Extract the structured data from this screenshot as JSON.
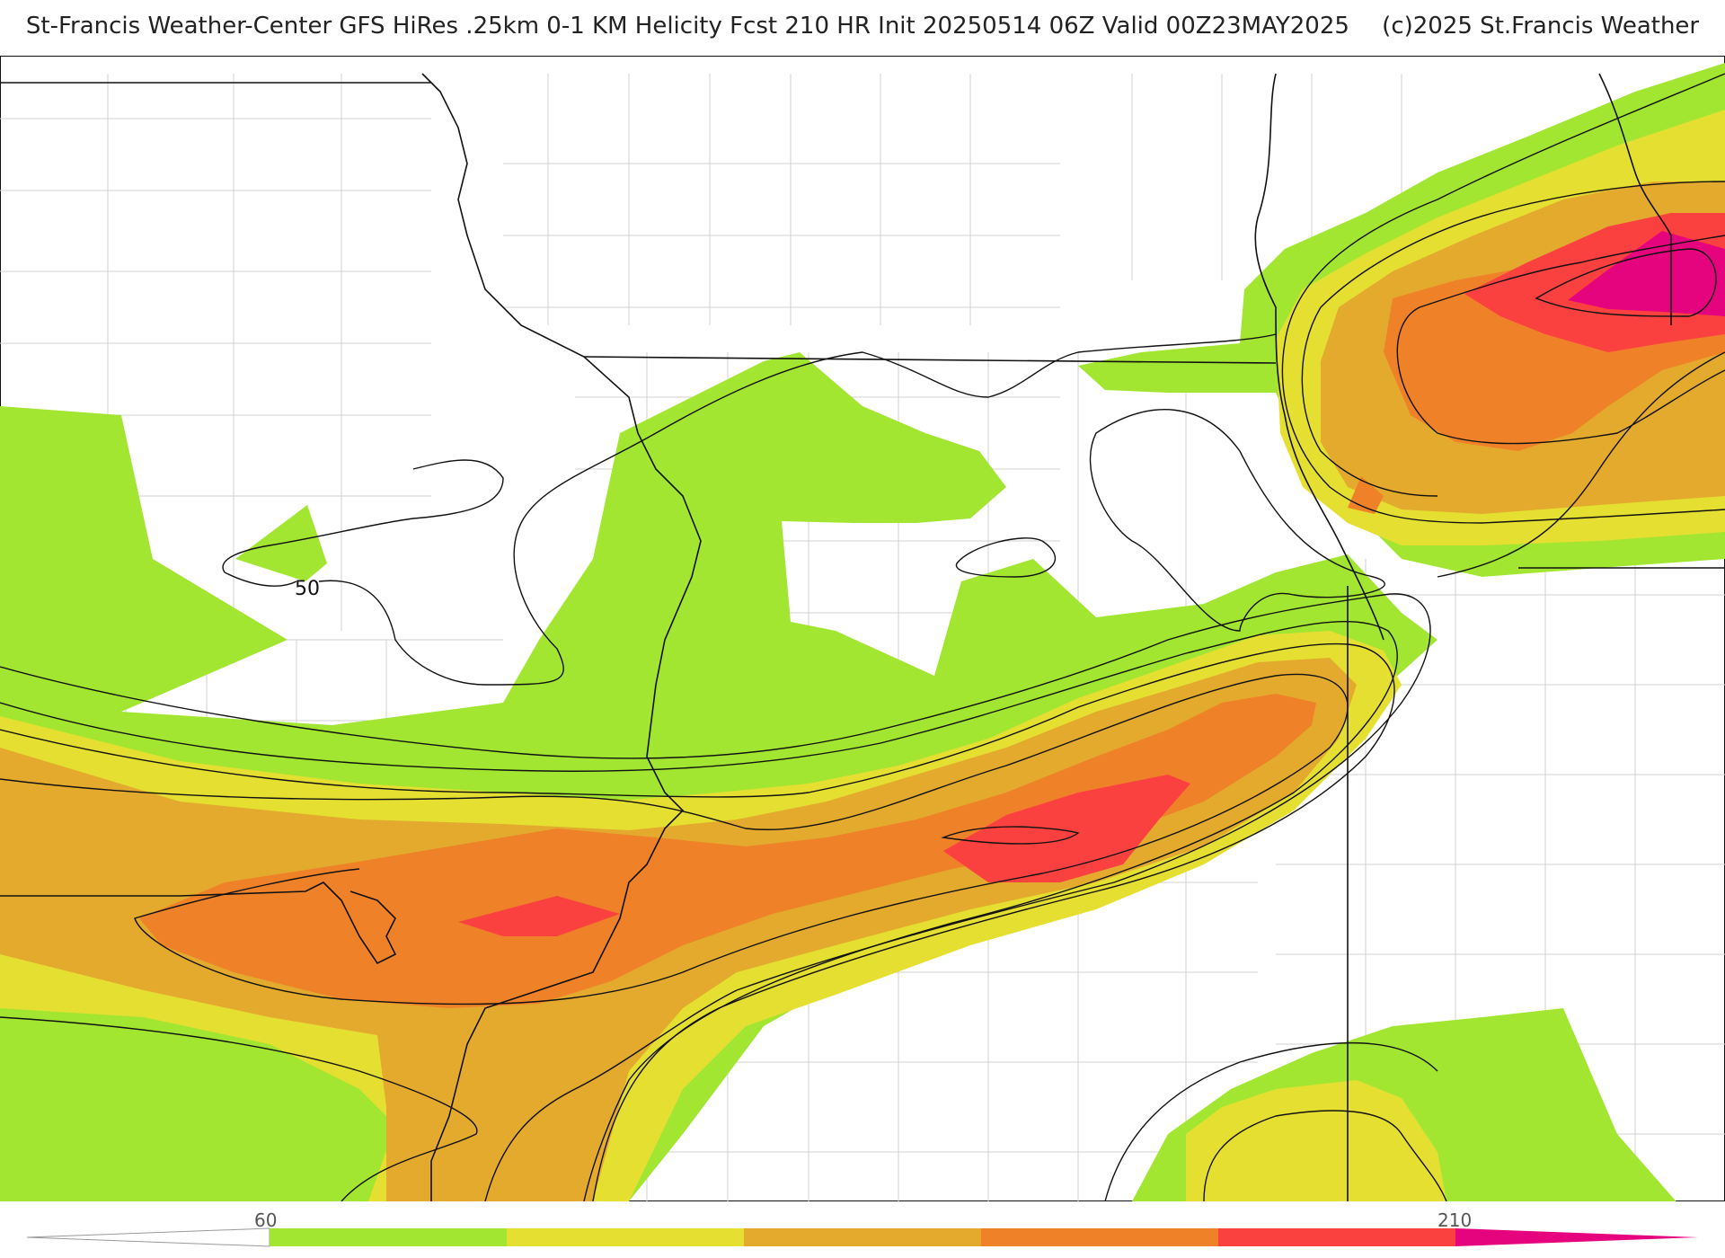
{
  "title": {
    "main": "St-Francis Weather-Center GFS HiRes .25km 0-1 KM Helicity Fcst 210 HR Init 20250514 06Z  Valid 00Z23MAY2025",
    "credit": "(c)2025 St.Francis Weather"
  },
  "map": {
    "contour_label": "50",
    "fill_colors": {
      "band_60": "#a2e632",
      "band_90": "#e5df32",
      "band_120": "#e3aa2e",
      "band_150": "#ef8228",
      "band_180": "#fb4040",
      "band_210": "#e6047e"
    },
    "state_line_color": "#111111",
    "county_line_color": "#cfcfcf",
    "contour_color": "#111111"
  },
  "legend": {
    "tick_left": "60",
    "tick_right": "210",
    "colors": [
      "#a2e632",
      "#e5df32",
      "#e3aa2e",
      "#ef8228",
      "#fb4040",
      "#e6047e"
    ]
  }
}
